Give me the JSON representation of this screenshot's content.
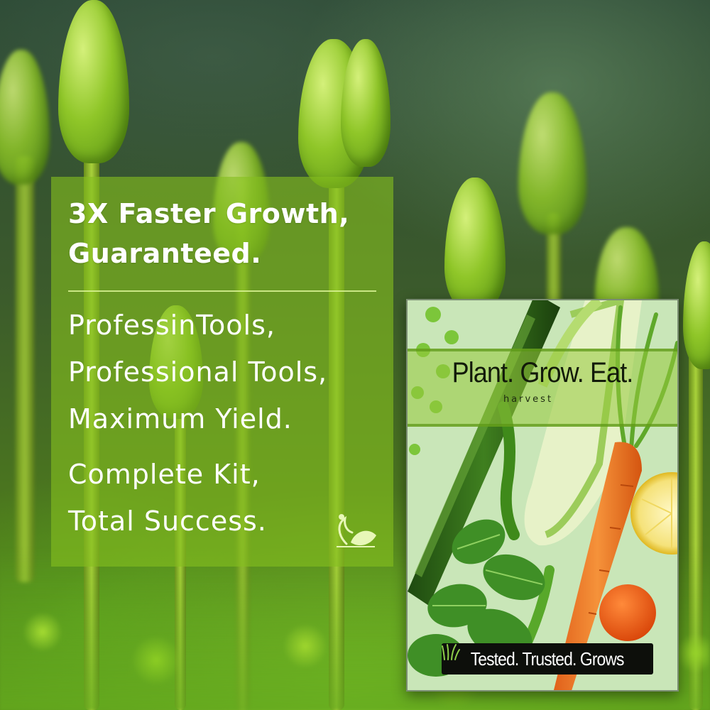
{
  "panel": {
    "headline": [
      "3X Faster Growth,",
      "Guaranteed."
    ],
    "lines": [
      "ProfessinTools,",
      "Professional Tools,",
      "Maximum Yield.",
      "Complete Kit,",
      "Total Success."
    ],
    "logo_icon": "sprout-leaf-icon"
  },
  "product": {
    "title": "Plant. Grow. Eat.",
    "subtitle": "harvest",
    "footer": "Tested. Trusted. Grows",
    "footer_icon": "grass-icon",
    "accent": "#84be1e"
  }
}
